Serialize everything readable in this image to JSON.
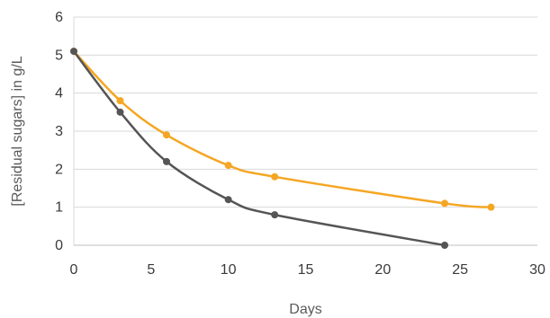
{
  "chart_data": {
    "type": "line",
    "title": "",
    "xlabel": "Days",
    "ylabel": "[Residual sugars] in g/L",
    "xlim": [
      0,
      30
    ],
    "ylim": [
      0,
      6
    ],
    "xticks": [
      0,
      5,
      10,
      15,
      20,
      25,
      30
    ],
    "yticks": [
      0,
      1,
      2,
      3,
      4,
      5,
      6
    ],
    "grid": "horizontal",
    "legend": "none",
    "smooth": true,
    "series": [
      {
        "color": "#F5A623",
        "x": [
          0,
          3,
          6,
          10,
          13,
          24,
          27
        ],
        "y": [
          5.1,
          3.8,
          2.9,
          2.1,
          1.8,
          1.1,
          1.0
        ]
      },
      {
        "color": "#555555",
        "x": [
          0,
          3,
          6,
          10,
          13,
          24
        ],
        "y": [
          5.1,
          3.5,
          2.2,
          1.2,
          0.8,
          0.0
        ]
      }
    ]
  }
}
